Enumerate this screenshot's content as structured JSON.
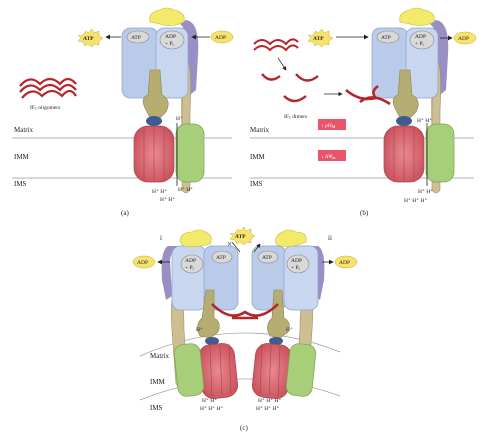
{
  "panel_a": {
    "caption": "(a)",
    "atp": "ATP",
    "adp": "ADP",
    "f1_left": "ATP",
    "f1_right": "ADP",
    "f1_right_sub": "+ P",
    "f1_right_sub2": "i",
    "oligomer_label": "IF",
    "oligomer_sub": "1",
    "oligomer_tail": " oligomers",
    "h_plus": "H⁺",
    "matrix": "Matrix",
    "imm": "IMM",
    "ims": "IMS",
    "h_bottom_1": "H⁺ H⁺",
    "h_bottom_2": "H⁺ H⁺",
    "h_bottom_3": "H⁺ H⁺"
  },
  "panel_b": {
    "caption": "(b)",
    "atp": "ATP",
    "adp": "ADP",
    "f1_left": "ATP",
    "f1_right": "ADP",
    "f1_right_sub": "+ P",
    "f1_right_sub2": "i",
    "dimer_label": "IF",
    "dimer_sub": "1",
    "dimer_tail": " dimers",
    "ph_box": "↓ pH",
    "ph_sub": "M",
    "dpsi_box": "↓ ΔΨ",
    "dpsi_sub": "m",
    "h_plus": "H⁺ H⁺",
    "matrix": "Matrix",
    "imm": "IMM",
    "ims": "IMS",
    "h_bottom_1": "H⁺ H⁺",
    "h_bottom_2": "H⁺ H⁺  H⁺"
  },
  "panel_c": {
    "caption": "(c)",
    "atp": "ATP",
    "label_i": "i",
    "label_ii": "ii",
    "adp_left": "ADP",
    "adp_right": "ADP",
    "f1_left_a": "ADP",
    "f1_left_b": "+ P",
    "f1_left_sub": "i",
    "f1_left_c": "ATP",
    "f1_right_a": "ATP",
    "f1_right_b": "ADP",
    "f1_right_c": "+ P",
    "f1_right_sub": "i",
    "h_plus_left": "H⁺",
    "h_plus_right": "H⁺",
    "matrix": "Matrix",
    "imm": "IMM",
    "ims": "IMS",
    "h_bottom_left_1": "H⁺ H⁺",
    "h_bottom_left_2": "H⁺ H⁺ H⁺",
    "h_bottom_right_1": "H⁺ H⁺ H⁺",
    "h_bottom_right_2": "H⁺ H⁺ H⁺"
  },
  "colors": {
    "alpha_beta": "#b9cbe9",
    "alpha_beta_dark": "#8aa2c8",
    "stalk": "#b5ad72",
    "peripheral": "#9a8fc4",
    "f6": "#e6b98a",
    "ring": "#d96a73",
    "subunit_a": "#a7cf7a",
    "delta": "#f3e96a",
    "if1": "#b3262c",
    "starburst": "#f7e26b",
    "epsilon": "#3e5c8e",
    "box": "#e8546a"
  }
}
